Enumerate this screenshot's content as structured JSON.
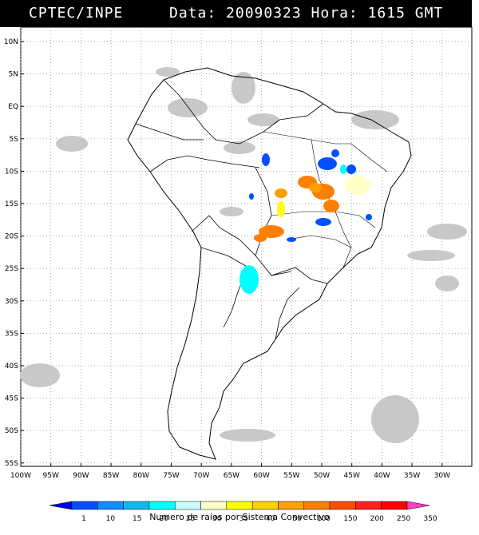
{
  "header": {
    "source": "CPTEC/INPE",
    "datetime": "Data: 20090323 Hora: 1615 GMT"
  },
  "map": {
    "lat_labels": [
      "10N",
      "5N",
      "EQ",
      "5S",
      "10S",
      "15S",
      "20S",
      "25S",
      "30S",
      "35S",
      "40S",
      "45S",
      "50S",
      "55S"
    ],
    "lon_labels": [
      "100W",
      "95W",
      "90W",
      "85W",
      "80W",
      "75W",
      "70W",
      "65W",
      "60W",
      "55W",
      "50W",
      "45W",
      "40W",
      "35W",
      "30W"
    ],
    "legend": {
      "values": [
        "1",
        "10",
        "15",
        "20",
        "25",
        "30",
        "35",
        "40",
        "50",
        "100",
        "150",
        "200",
        "250",
        "350"
      ],
      "colors": [
        "#0000e0",
        "#0050ff",
        "#1090ff",
        "#10b8f0",
        "#00ffff",
        "#c8ffff",
        "#ffffc8",
        "#ffff00",
        "#ffd000",
        "#ffa000",
        "#ff8000",
        "#ff5000",
        "#ff2020",
        "#ff0000",
        "#ff40c0"
      ],
      "caption": "Numero de raios por Sistema Convectivo"
    }
  }
}
